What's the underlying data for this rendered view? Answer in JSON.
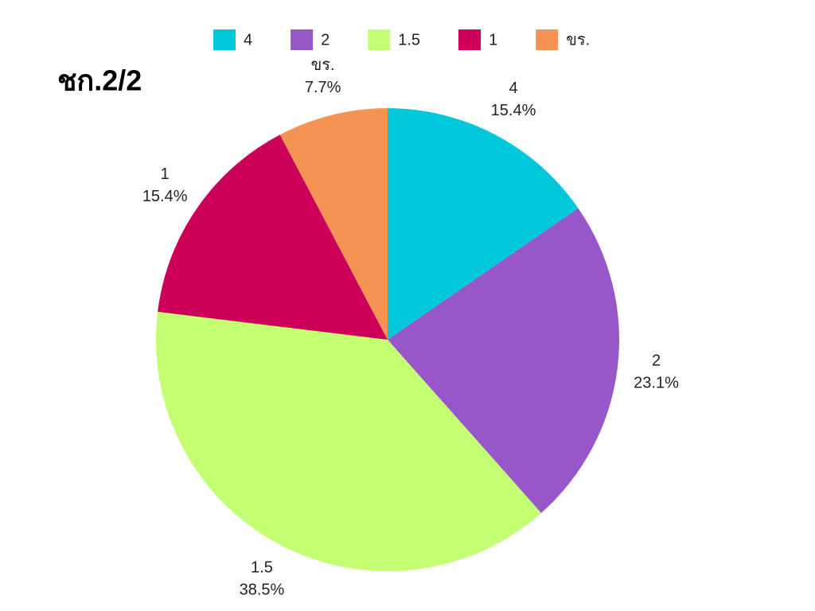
{
  "chart_data": {
    "type": "pie",
    "title": "ชก.2/2",
    "categories": [
      "4",
      "2",
      "1.5",
      "1",
      "ขร."
    ],
    "values": [
      15.4,
      23.1,
      38.5,
      15.4,
      7.7
    ],
    "value_labels": [
      "15.4%",
      "23.1%",
      "38.5%",
      "15.4%",
      "7.7%"
    ],
    "colors": [
      "#00c8da",
      "#9757c9",
      "#c4ff73",
      "#cc0058",
      "#f59355"
    ],
    "legend": "top"
  }
}
